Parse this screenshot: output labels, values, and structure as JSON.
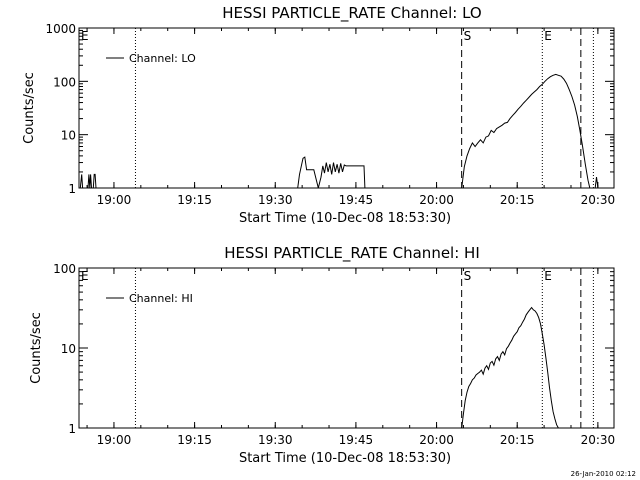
{
  "footer": {
    "timestamp": "26-Jan-2010 02:12"
  },
  "chart_data": [
    {
      "type": "line",
      "title": "HESSI PARTICLE_RATE Channel: LO",
      "xlabel": "Start Time (10-Dec-08 18:53:30)",
      "ylabel": "Counts/sec",
      "yscale": "log",
      "ylim": [
        1,
        1000
      ],
      "xlim": [
        "18:53:30",
        "20:33:00"
      ],
      "x_ticks": [
        "19:00",
        "19:15",
        "19:30",
        "19:45",
        "20:00",
        "20:15",
        "20:30"
      ],
      "y_ticks": [
        "1",
        "10",
        "100",
        "1000"
      ],
      "grid": false,
      "legend": {
        "position": "top-left",
        "entries": [
          "Channel: LO"
        ]
      },
      "markers": [
        {
          "label": "E",
          "time": "18:53:30",
          "style": "dotted"
        },
        {
          "label": "",
          "time": "19:04:00",
          "style": "dotted"
        },
        {
          "label": "S",
          "time": "20:04:40",
          "style": "dashed"
        },
        {
          "label": "E",
          "time": "20:19:40",
          "style": "dotted"
        },
        {
          "label": "",
          "time": "20:26:50",
          "style": "dashed"
        },
        {
          "label": "",
          "time": "20:29:10",
          "style": "dotted"
        }
      ],
      "series": [
        {
          "name": "Channel: LO",
          "segments": [
            {
              "x": [
                "18:53:30",
                "18:53:45",
                "18:54:00",
                "18:54:10",
                "18:54:20",
                "18:54:30"
              ],
              "y": [
                1,
                1,
                1.8,
                1,
                1,
                1
              ]
            },
            {
              "x": [
                "18:55:10",
                "18:55:20",
                "18:55:30",
                "18:55:40",
                "18:55:50"
              ],
              "y": [
                1,
                1.8,
                1,
                1.8,
                1
              ]
            },
            {
              "x": [
                "18:56:10",
                "18:56:20",
                "18:56:30",
                "18:56:40"
              ],
              "y": [
                1,
                1.8,
                1.8,
                1
              ]
            },
            {
              "x": [
                "19:34:10",
                "19:34:30",
                "19:35:10",
                "19:35:30",
                "19:35:50",
                "19:37:10",
                "19:38:00",
                "19:38:30",
                "19:38:50",
                "19:39:10",
                "19:39:30",
                "19:39:50",
                "19:40:10",
                "19:40:30",
                "19:40:50",
                "19:41:10",
                "19:41:30",
                "19:41:50",
                "19:42:10",
                "19:42:30",
                "19:42:50",
                "19:43:10",
                "19:43:40",
                "19:44:20",
                "19:46:10",
                "19:46:30",
                "19:46:40"
              ],
              "y": [
                1,
                1.8,
                3.6,
                3.8,
                2.2,
                2.2,
                1,
                1.6,
                2.6,
                1.9,
                3.0,
                2.0,
                2.8,
                1.8,
                3.0,
                2.0,
                2.8,
                1.9,
                2.9,
                2.0,
                2.7,
                2.6,
                2.6,
                2.6,
                2.6,
                2.6,
                1
              ]
            },
            {
              "x": [
                "20:04:40",
                "20:05:10",
                "20:05:40",
                "20:06:10",
                "20:06:40",
                "20:07:10",
                "20:07:40",
                "20:08:10",
                "20:08:40",
                "20:09:10",
                "20:09:40",
                "20:10:10",
                "20:10:40",
                "20:11:10",
                "20:11:40",
                "20:12:10",
                "20:12:40",
                "20:13:10",
                "20:13:40",
                "20:14:10",
                "20:14:40",
                "20:15:10",
                "20:15:40",
                "20:16:10",
                "20:16:40",
                "20:17:10",
                "20:17:40",
                "20:18:10",
                "20:18:40",
                "20:19:10",
                "20:19:40",
                "20:20:10",
                "20:20:40",
                "20:21:10",
                "20:21:40",
                "20:22:10",
                "20:22:40",
                "20:23:10",
                "20:23:40",
                "20:24:10",
                "20:24:40",
                "20:25:10",
                "20:25:40",
                "20:26:10",
                "20:26:40",
                "20:27:10",
                "20:27:40",
                "20:28:10",
                "20:28:30"
              ],
              "y": [
                1,
                2.5,
                4,
                5.5,
                7,
                6,
                7,
                8,
                7,
                9,
                9.5,
                12,
                11,
                13,
                14,
                15,
                16.5,
                17,
                20,
                23,
                26,
                30,
                34,
                39,
                44,
                50,
                57,
                63,
                70,
                80,
                88,
                100,
                112,
                122,
                130,
                135,
                130,
                125,
                110,
                92,
                70,
                52,
                36,
                22,
                12,
                6,
                2.8,
                1.4,
                1
              ]
            },
            {
              "x": [
                "20:29:30",
                "20:29:45",
                "20:29:55",
                "20:30:00"
              ],
              "y": [
                1,
                1.6,
                1.2,
                1
              ]
            }
          ]
        }
      ]
    },
    {
      "type": "line",
      "title": "HESSI PARTICLE_RATE Channel: HI",
      "xlabel": "Start Time (10-Dec-08 18:53:30)",
      "ylabel": "Counts/sec",
      "yscale": "log",
      "ylim": [
        1,
        100
      ],
      "xlim": [
        "18:53:30",
        "20:33:00"
      ],
      "x_ticks": [
        "19:00",
        "19:15",
        "19:30",
        "19:45",
        "20:00",
        "20:15",
        "20:30"
      ],
      "y_ticks": [
        "1",
        "10",
        "100"
      ],
      "grid": false,
      "legend": {
        "position": "top-left",
        "entries": [
          "Channel: HI"
        ]
      },
      "markers": [
        {
          "label": "E",
          "time": "18:53:30",
          "style": "dotted"
        },
        {
          "label": "",
          "time": "19:04:00",
          "style": "dotted"
        },
        {
          "label": "S",
          "time": "20:04:40",
          "style": "dashed"
        },
        {
          "label": "E",
          "time": "20:19:40",
          "style": "dotted"
        },
        {
          "label": "",
          "time": "20:26:50",
          "style": "dashed"
        },
        {
          "label": "",
          "time": "20:29:10",
          "style": "dotted"
        }
      ],
      "series": [
        {
          "name": "Channel: HI",
          "segments": [
            {
              "x": [
                "20:04:40",
                "20:05:00",
                "20:05:20",
                "20:05:40",
                "20:06:00",
                "20:06:20",
                "20:06:40",
                "20:07:00",
                "20:07:20",
                "20:07:40",
                "20:08:00",
                "20:08:20",
                "20:08:40",
                "20:09:00",
                "20:09:20",
                "20:09:40",
                "20:10:00",
                "20:10:20",
                "20:10:40",
                "20:11:00",
                "20:11:20",
                "20:11:40",
                "20:12:00",
                "20:12:20",
                "20:12:40",
                "20:13:00",
                "20:13:20",
                "20:13:40",
                "20:14:00",
                "20:14:20",
                "20:14:40",
                "20:15:00",
                "20:15:20",
                "20:15:40",
                "20:16:00",
                "20:16:20",
                "20:16:40",
                "20:17:00",
                "20:17:20",
                "20:17:40",
                "20:18:00",
                "20:18:20",
                "20:18:40",
                "20:19:00",
                "20:19:20",
                "20:19:40",
                "20:20:00",
                "20:20:20",
                "20:20:40",
                "20:21:00",
                "20:21:20",
                "20:21:40",
                "20:22:00",
                "20:22:20",
                "20:22:40",
                "20:22:50"
              ],
              "y": [
                1,
                1.5,
                2.2,
                2.8,
                3.3,
                3.6,
                4,
                4.2,
                4.6,
                4.8,
                5,
                5.3,
                4.7,
                5.6,
                6,
                5.4,
                6.5,
                6.8,
                6.1,
                7.3,
                7.8,
                7,
                8.4,
                9,
                8.2,
                9.8,
                10.5,
                11.5,
                12.5,
                14,
                15,
                16,
                18,
                19,
                21,
                23,
                26,
                28,
                30,
                32,
                30,
                29,
                27,
                24,
                20,
                15,
                11,
                7.5,
                5,
                3.2,
                2.2,
                1.6,
                1.3,
                1.1,
                1.0,
                1
              ]
            }
          ]
        }
      ]
    }
  ]
}
